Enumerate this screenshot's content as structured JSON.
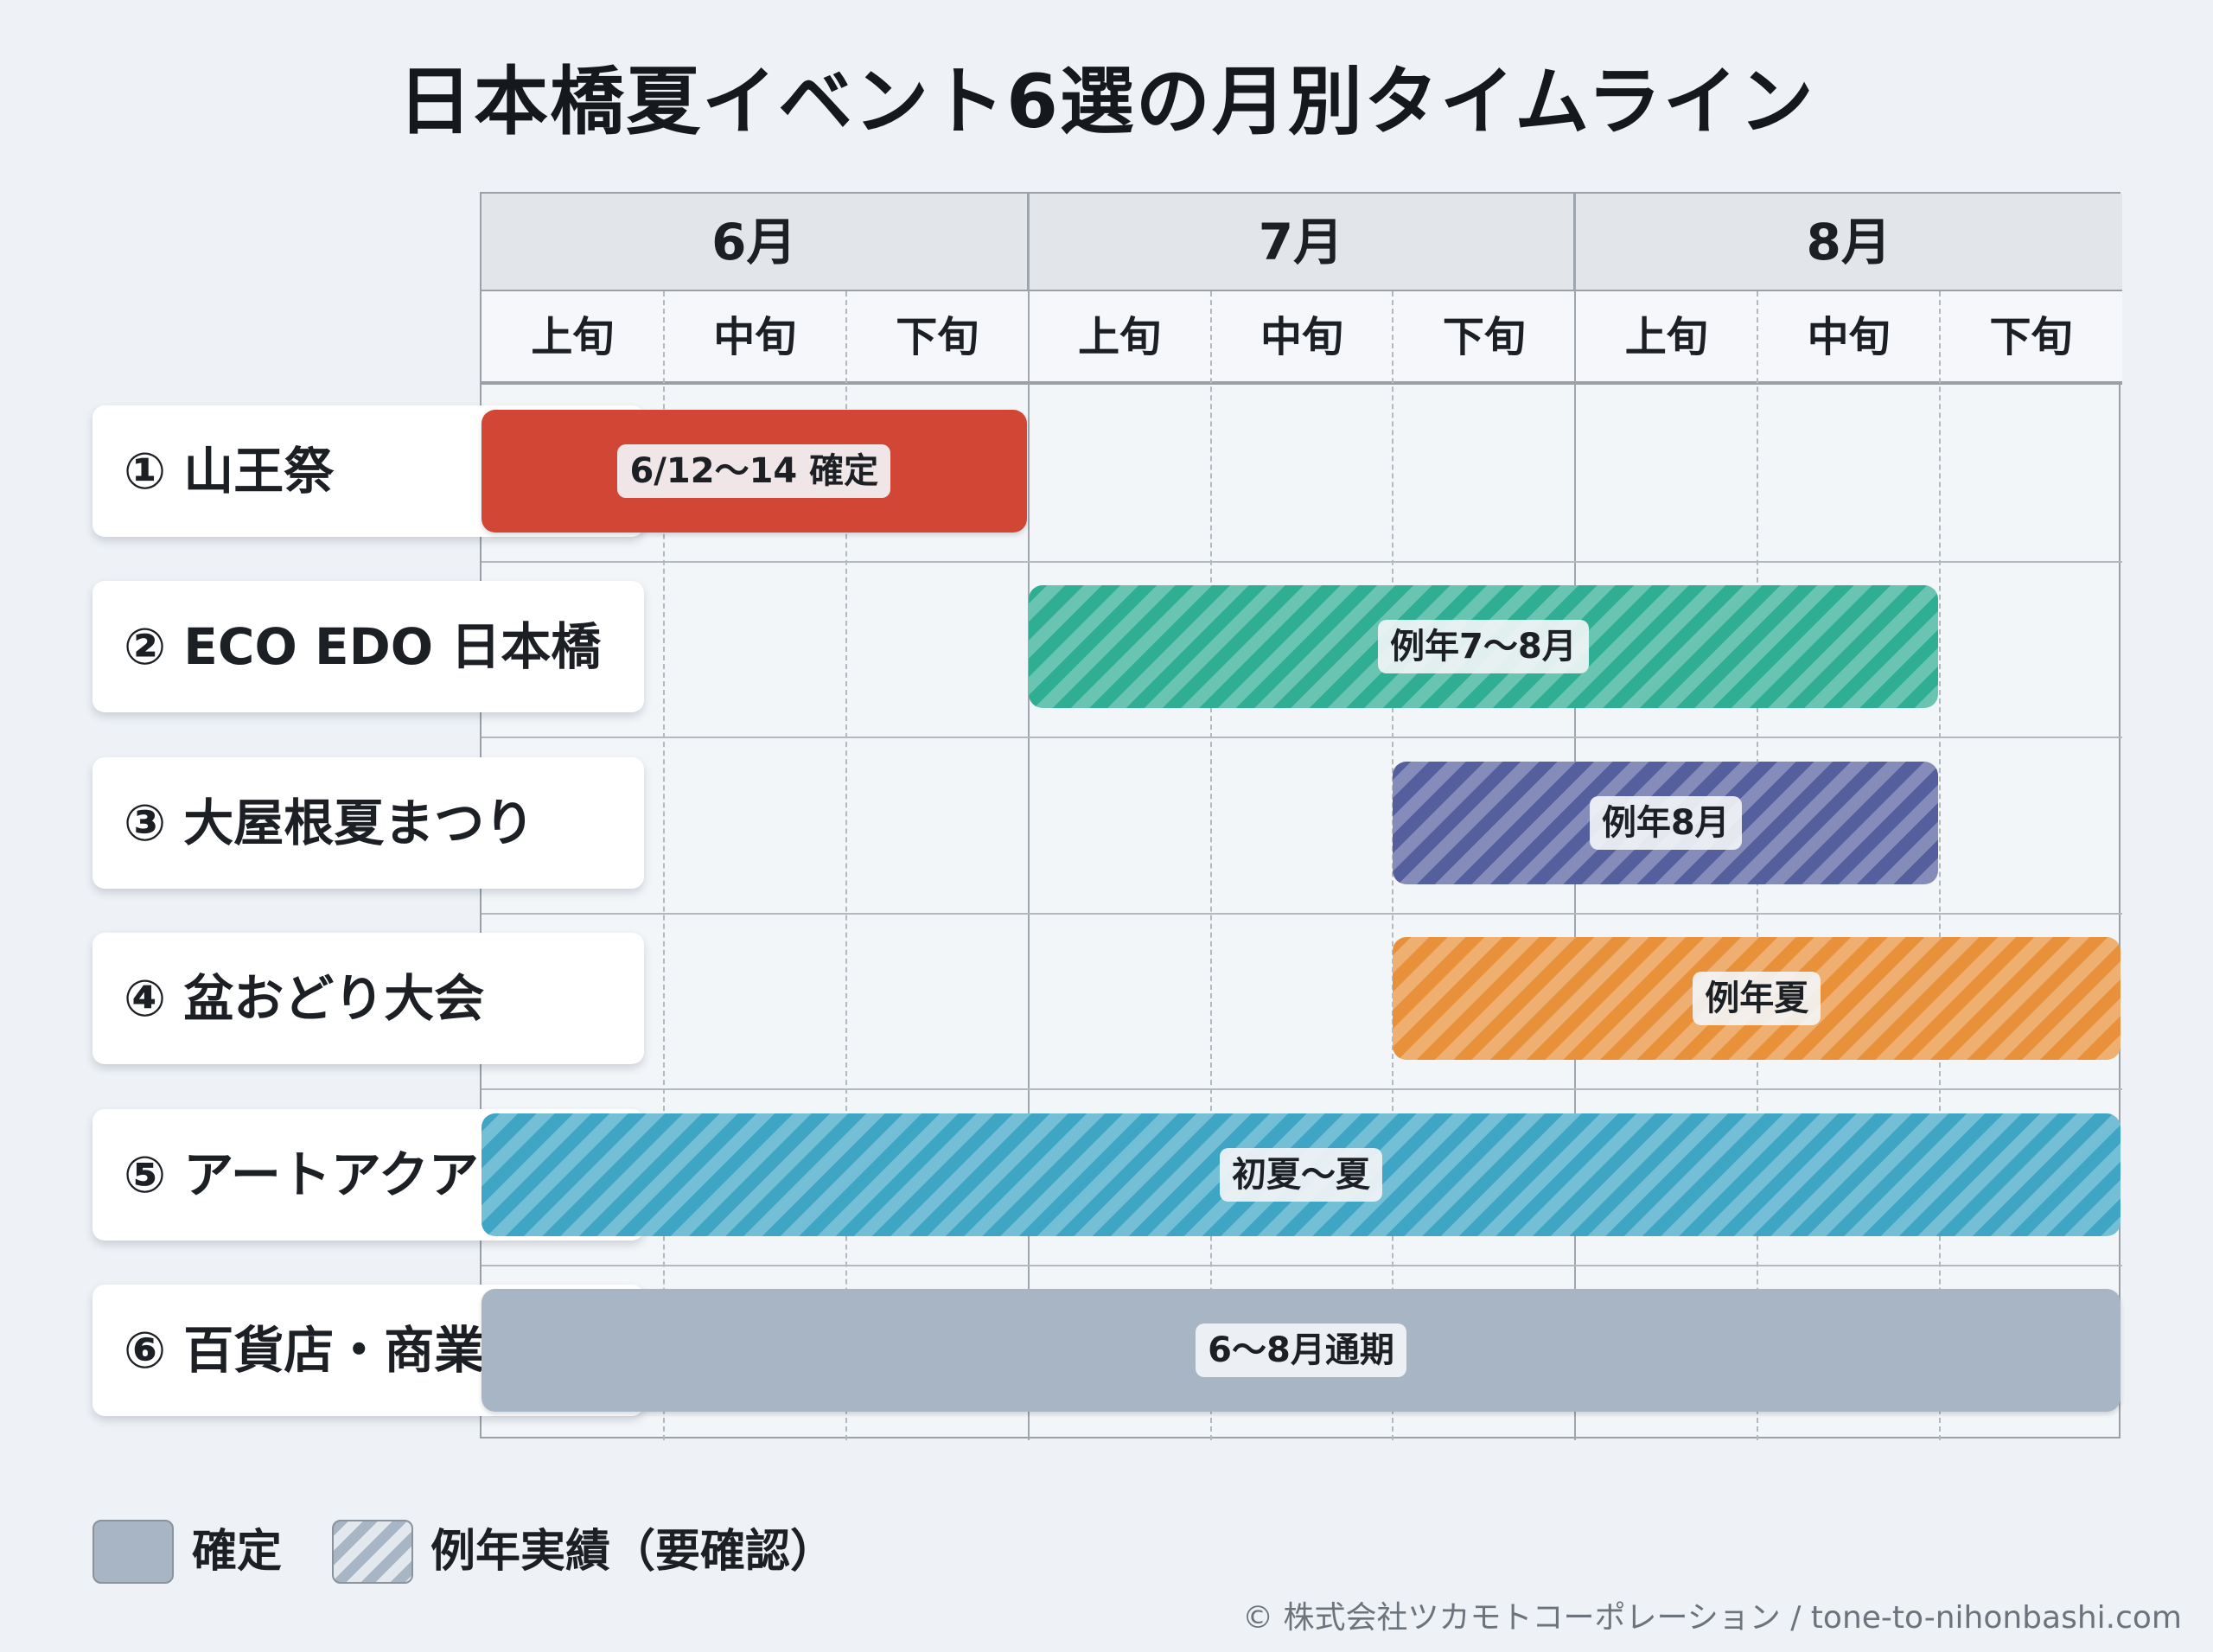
{
  "title": "日本橋夏イベント6選の月別タイムライン",
  "months": [
    "6月",
    "7月",
    "8月"
  ],
  "dekads": [
    "上旬",
    "中旬",
    "下旬"
  ],
  "rows": [
    {
      "label": "① 山王祭",
      "start": 1,
      "end": 3,
      "status": "確定",
      "color": "#d24635",
      "bar_label": "6/12〜14 確定"
    },
    {
      "label": "② ECO EDO 日本橋",
      "start": 4,
      "end": 8,
      "status": "例年実績",
      "color": "#2fae93",
      "bar_label": "例年7〜8月"
    },
    {
      "label": "③ 大屋根夏まつり",
      "start": 6,
      "end": 8,
      "status": "例年実績",
      "color": "#565f9e",
      "bar_label": "例年8月"
    },
    {
      "label": "④ 盆おどり大会",
      "start": 6,
      "end": 9,
      "status": "例年実績",
      "color": "#e8903a",
      "bar_label": "例年夏"
    },
    {
      "label": "⑤ アートアクアリウム",
      "start": 1,
      "end": 9,
      "status": "例年実績",
      "color": "#3ea6c4",
      "bar_label": "初夏〜夏"
    },
    {
      "label": "⑥ 百貨店・商業施設",
      "start": 1,
      "end": 9,
      "status": "確定",
      "color": "#a8b5c4",
      "bar_label": "6〜8月通期"
    }
  ],
  "legend": {
    "confirmed": "確定",
    "estimated": "例年実績（要確認）",
    "confirmed_color": "#a8b5c4"
  },
  "footer": "© 株式会社ツカモトコーポレーション / tone-to-nihonbashi.com"
}
